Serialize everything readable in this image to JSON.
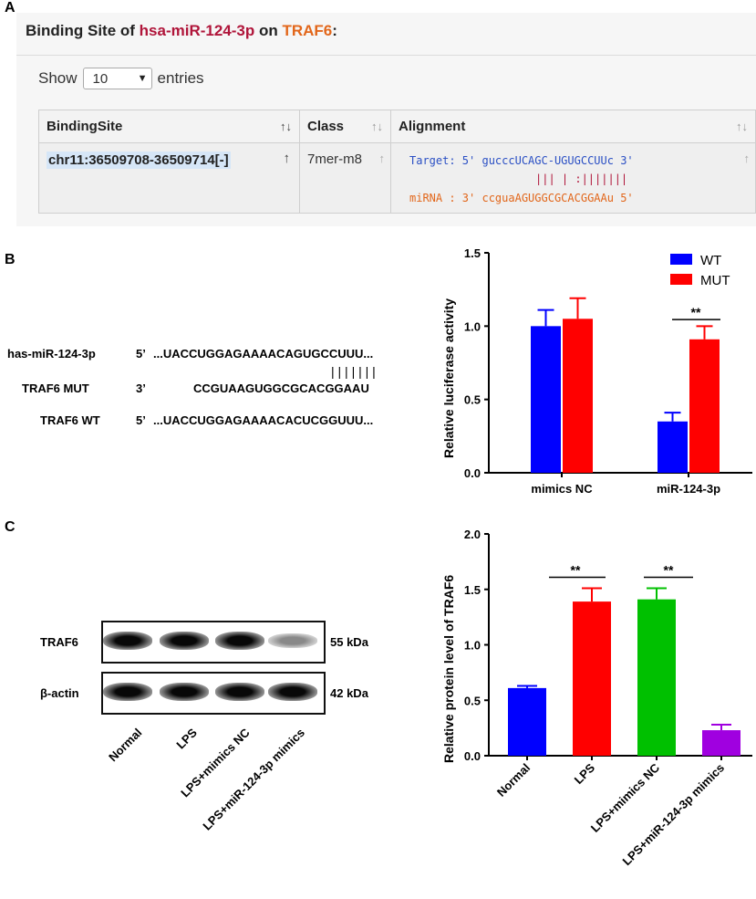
{
  "panels": {
    "a": "A",
    "b": "B",
    "c": "C"
  },
  "panel_a": {
    "title_prefix": "Binding Site of ",
    "mirna": "hsa-miR-124-3p",
    "title_mid": " on ",
    "gene": "TRAF6",
    "title_suffix": ":",
    "show_label": "Show",
    "entries_value": "10",
    "entries_label": "entries",
    "columns": [
      "BindingSite",
      "Class",
      "Alignment"
    ],
    "sort_icon": "sort-both-icon",
    "row": {
      "binding_site": "chr11:36509708-36509714[-]",
      "class": "7mer-m8",
      "target_line": "Target: 5' gucccUCAGC-UGUGCCUUc 3'",
      "pair_line": "||| | :|||||||",
      "mirna_line": "miRNA : 3' ccguaAGUGGCGCACGGAAu 5'"
    }
  },
  "panel_b_seq": {
    "rows": [
      {
        "name": "has-miR-124-3p",
        "end": "5’",
        "seq": "...UACCUGGAGAAAACAGUGCCUUU..."
      },
      {
        "name": "TRAF6 MUT",
        "end": "3’",
        "seq": "CCGUAAGUGGCGCACGGAAU"
      },
      {
        "name": "TRAF6 WT",
        "end": "5’",
        "seq": "...UACCUGGAGAAAACACUCGGUUU..."
      }
    ],
    "pair_marks": "| | | | | | |"
  },
  "chart_data": [
    {
      "type": "bar",
      "ylabel": "Relative luciferase activity",
      "categories": [
        "mimics NC",
        "miR-124-3p"
      ],
      "ylim": [
        0,
        1.5
      ],
      "yticks": [
        "0.0",
        "0.5",
        "1.0",
        "1.5"
      ],
      "series": [
        {
          "name": "WT",
          "values": [
            1.0,
            0.35
          ],
          "errors": [
            0.11,
            0.06
          ],
          "color": "#0000ff"
        },
        {
          "name": "MUT",
          "values": [
            1.05,
            0.91
          ],
          "errors": [
            0.14,
            0.09
          ],
          "color": "#ff0000"
        }
      ],
      "significance": [
        {
          "category": "miR-124-3p",
          "label": "**"
        }
      ],
      "legend": "top-right"
    },
    {
      "type": "bar",
      "ylabel": "Relative protein level of TRAF6",
      "categories": [
        "Normal",
        "LPS",
        "LPS+mimics NC",
        "LPS+miR-124-3p mimics"
      ],
      "values": [
        0.61,
        1.39,
        1.41,
        0.23
      ],
      "errors": [
        0.02,
        0.12,
        0.1,
        0.05
      ],
      "colors": [
        "#0000ff",
        "#ff0000",
        "#00c000",
        "#a000e0"
      ],
      "ylim": [
        0,
        2.0
      ],
      "yticks": [
        "0.0",
        "0.5",
        "1.0",
        "1.5",
        "2.0"
      ],
      "significance": [
        {
          "between": [
            "Normal",
            "LPS"
          ],
          "label": "**"
        },
        {
          "between": [
            "LPS+mimics NC",
            "LPS+miR-124-3p mimics"
          ],
          "label": "**"
        }
      ]
    }
  ],
  "western_blot": {
    "bands": [
      {
        "name": "TRAF6",
        "kda": "55 kDa",
        "intensity": [
          1.0,
          1.0,
          1.0,
          0.45
        ]
      },
      {
        "name": "β-actin",
        "kda": "42 kDa",
        "intensity": [
          1.0,
          1.0,
          1.0,
          1.0
        ]
      }
    ],
    "lanes": [
      "Normal",
      "LPS",
      "LPS+mimics NC",
      "LPS+miR-124-3p mimics"
    ]
  }
}
